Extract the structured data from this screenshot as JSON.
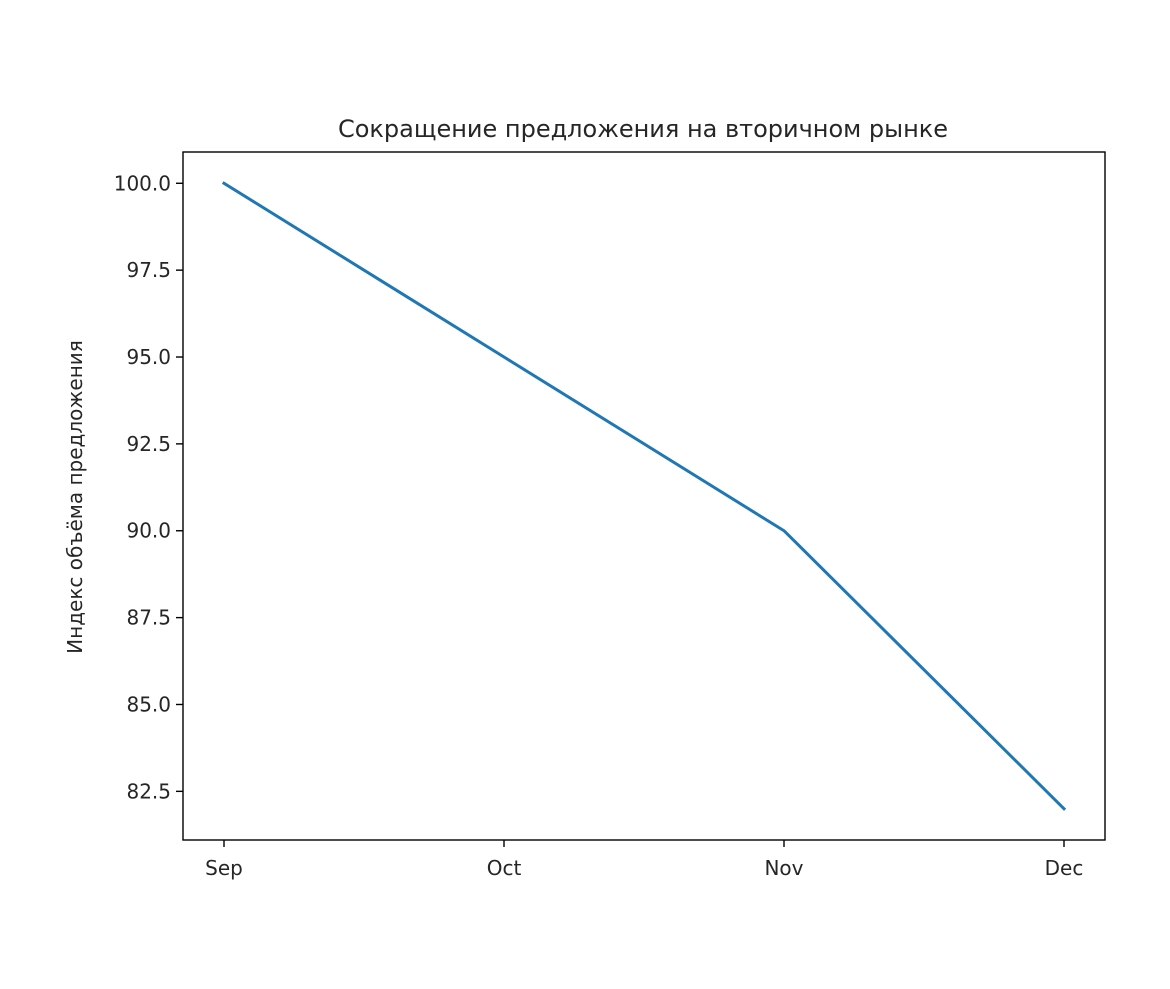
{
  "chart_data": {
    "type": "line",
    "title": "Сокращение предложения на вторичном рынке",
    "xlabel": "",
    "ylabel": "Индекс объёма предложения",
    "categories": [
      "Sep",
      "Oct",
      "Nov",
      "Dec"
    ],
    "series": [
      {
        "values": [
          100.0,
          95.0,
          90.0,
          82.0
        ],
        "color": "#1f77b4"
      }
    ],
    "ylim": [
      81.1,
      100.9
    ],
    "yticks": [
      "82.5",
      "85.0",
      "87.5",
      "90.0",
      "92.5",
      "95.0",
      "97.5",
      "100.0"
    ],
    "grid": false,
    "legend": "none"
  }
}
